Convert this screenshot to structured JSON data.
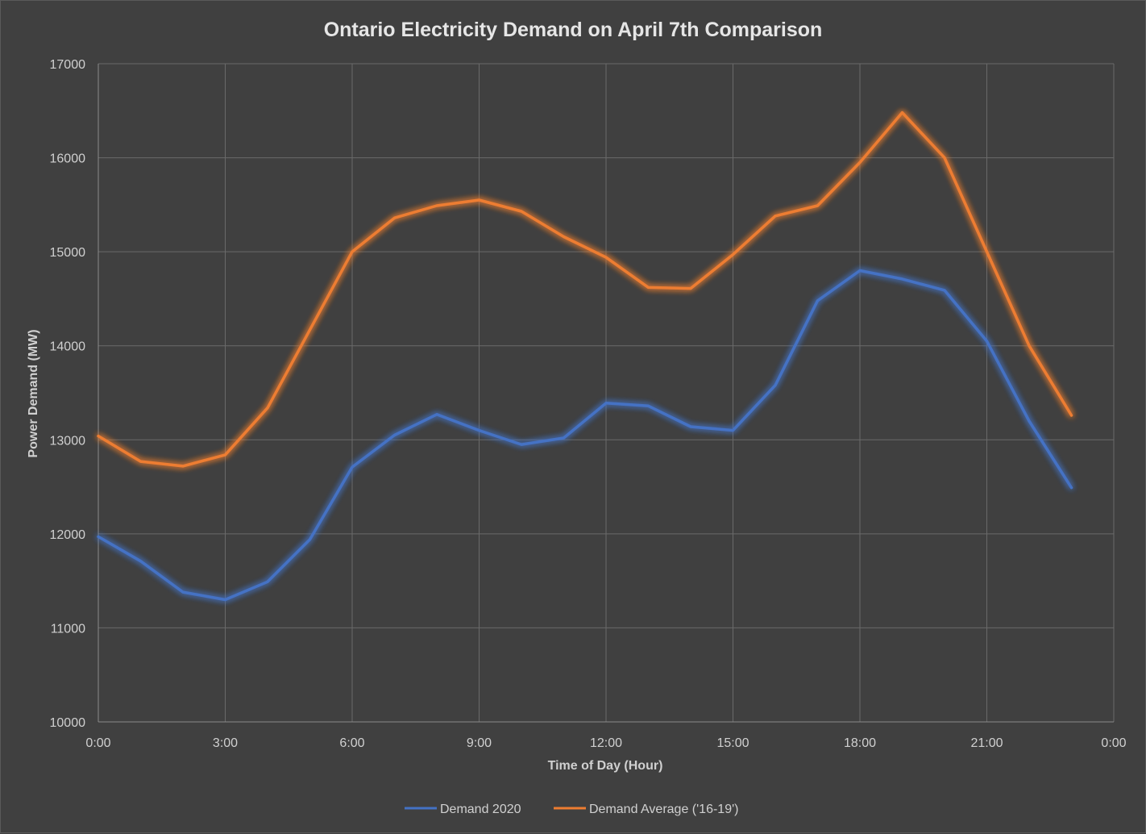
{
  "chart_data": {
    "type": "line",
    "title": "Ontario Electricity Demand on April 7th Comparison",
    "xlabel": "Time of Day (Hour)",
    "ylabel": "Power Demand (MW)",
    "xlim": [
      0,
      24
    ],
    "ylim": [
      10000,
      17000
    ],
    "x_tick_values": [
      0,
      3,
      6,
      9,
      12,
      15,
      18,
      21,
      24
    ],
    "x_tick_labels": [
      "0:00",
      "3:00",
      "6:00",
      "9:00",
      "12:00",
      "15:00",
      "18:00",
      "21:00",
      "0:00"
    ],
    "y_tick_values": [
      10000,
      11000,
      12000,
      13000,
      14000,
      15000,
      16000,
      17000
    ],
    "grid": true,
    "legend_position": "bottom",
    "x": [
      0,
      1,
      2,
      3,
      4,
      5,
      6,
      7,
      8,
      9,
      10,
      11,
      12,
      13,
      14,
      15,
      16,
      17,
      18,
      19,
      20,
      21,
      22,
      23
    ],
    "series": [
      {
        "name": "Demand 2020",
        "color": "#4472c4",
        "values": [
          11970,
          11710,
          11380,
          11300,
          11490,
          11940,
          12710,
          13050,
          13270,
          13100,
          12950,
          13020,
          13390,
          13360,
          13140,
          13100,
          13580,
          14480,
          14800,
          14710,
          14590,
          14050,
          13200,
          12490
        ]
      },
      {
        "name": "Demand Average ('16-19')",
        "color": "#ed7d31",
        "values": [
          13040,
          12770,
          12720,
          12840,
          13340,
          14170,
          15000,
          15360,
          15490,
          15550,
          15430,
          15160,
          14940,
          14620,
          14610,
          14970,
          15380,
          15490,
          15950,
          16480,
          16000,
          15000,
          14000,
          13260
        ]
      }
    ]
  }
}
